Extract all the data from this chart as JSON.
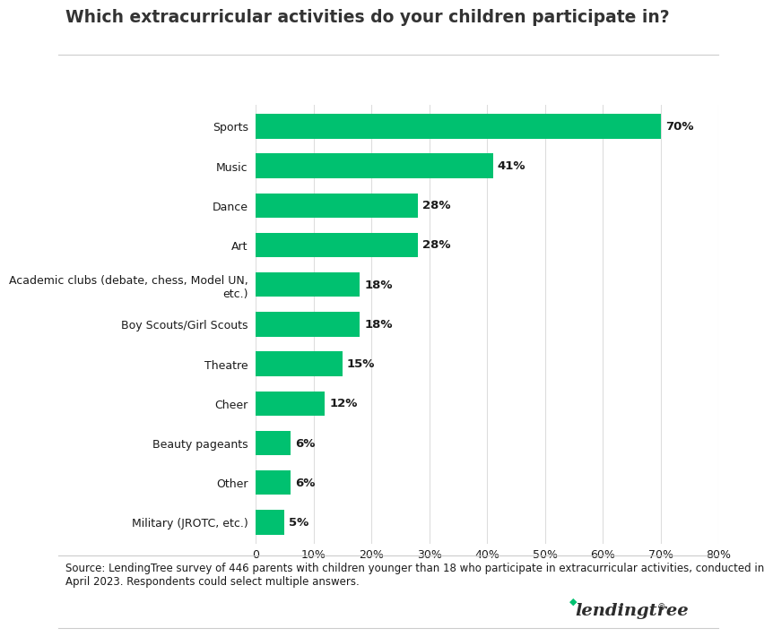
{
  "title": "Which extracurricular activities do your children participate in?",
  "categories": [
    "Sports",
    "Music",
    "Dance",
    "Art",
    "Academic clubs (debate, chess, Model UN,\netc.)",
    "Boy Scouts/Girl Scouts",
    "Theatre",
    "Cheer",
    "Beauty pageants",
    "Other",
    "Military (JROTC, etc.)"
  ],
  "values": [
    70,
    41,
    28,
    28,
    18,
    18,
    15,
    12,
    6,
    6,
    5
  ],
  "bar_color": "#00C170",
  "bar_label_color": "#1a1a1a",
  "title_color": "#333333",
  "background_color": "#ffffff",
  "xlim": [
    0,
    80
  ],
  "xtick_labels": [
    "0",
    "10%",
    "20%",
    "30%",
    "40%",
    "50%",
    "60%",
    "70%",
    "80%"
  ],
  "xtick_values": [
    0,
    10,
    20,
    30,
    40,
    50,
    60,
    70,
    80
  ],
  "source_text": "Source: LendingTree survey of 446 parents with children younger than 18 who participate in extracurricular activities, conducted in\nApril 2023. Respondents could select multiple answers.",
  "title_fontsize": 13.5,
  "label_fontsize": 9.5,
  "tick_fontsize": 9,
  "source_fontsize": 8.5,
  "grid_color": "#dddddd",
  "separator_color": "#cccccc"
}
